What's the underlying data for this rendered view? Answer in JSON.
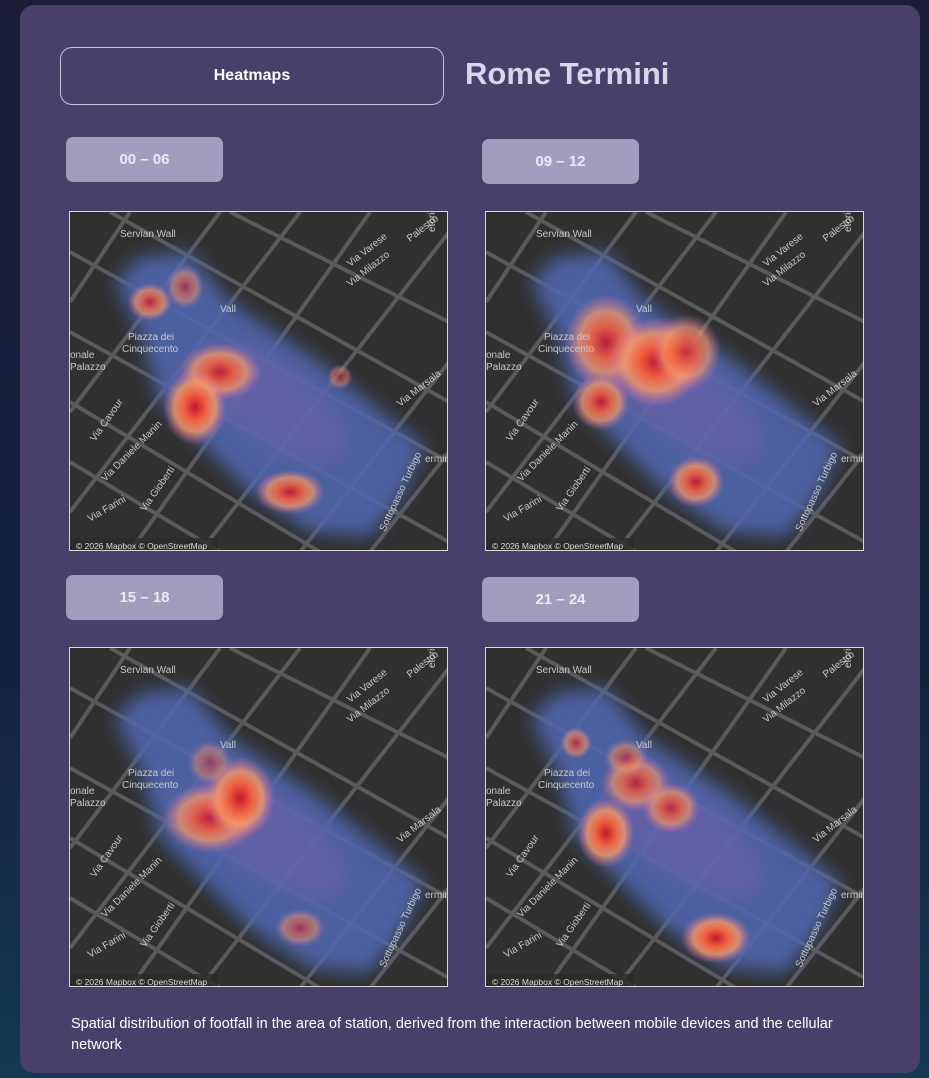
{
  "header": {
    "button": "Heatmaps",
    "title": "Rome Termini"
  },
  "panels": [
    {
      "label": "00 – 06"
    },
    {
      "label": "09 – 12"
    },
    {
      "label": "15 – 18"
    },
    {
      "label": "21 – 24"
    }
  ],
  "map": {
    "labels": [
      "Servian Wall",
      "Via Varese",
      "Palestro",
      "Via Milazzo",
      "Piazza dei",
      "Cinquecento",
      "onale",
      "Palazzo",
      "Via Cavour",
      "Via Daniele Manin",
      "Via Gioberti",
      "Via Farini",
      "Via Marsala",
      "Sottopasso Turbigo",
      "ermini",
      "Vall",
      "etorio"
    ],
    "attribution": "© 2026 Mapbox © OpenStreetMap"
  },
  "caption": "Spatial distribution of footfall in the area of station, derived from the interaction between mobile devices and the cellular network"
}
